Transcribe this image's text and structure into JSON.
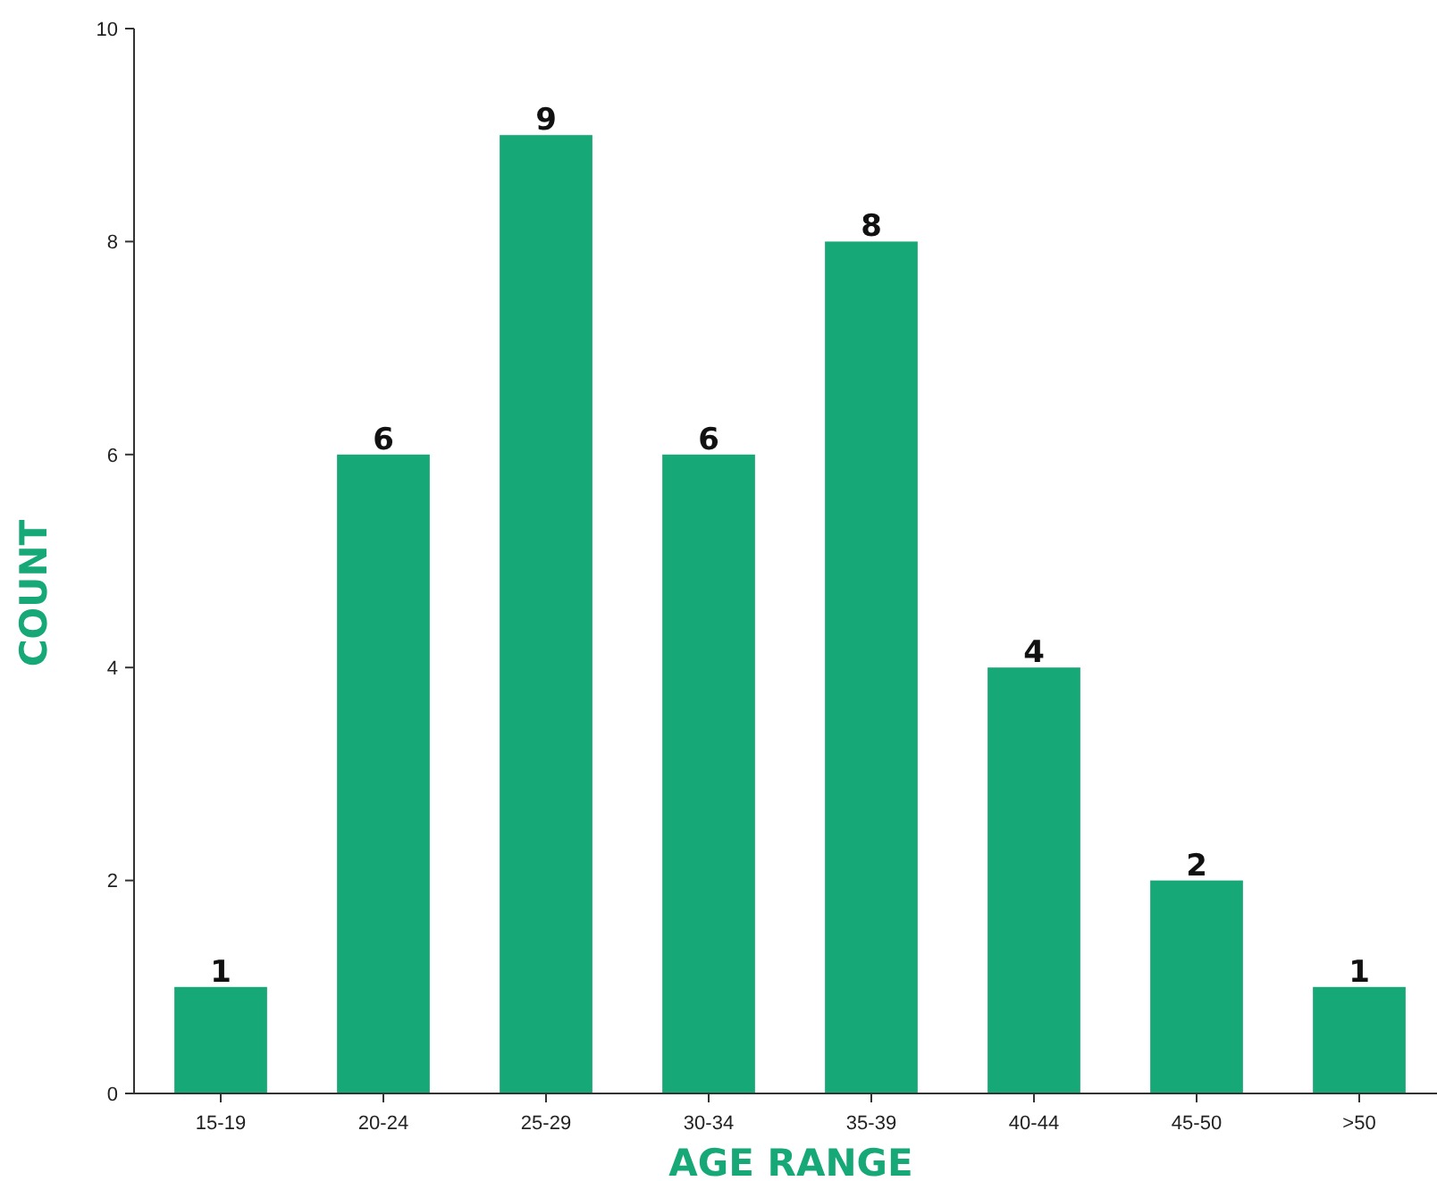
{
  "chart_data": {
    "type": "bar",
    "xlabel": "AGE RANGE",
    "ylabel": "COUNT",
    "categories": [
      "15-19",
      "20-24",
      "25-29",
      "30-34",
      "35-39",
      "40-44",
      "45-50",
      ">50"
    ],
    "values": [
      1,
      6,
      9,
      6,
      8,
      4,
      2,
      1
    ],
    "color": "#17a878",
    "ylim": [
      0,
      10
    ],
    "yticks": [
      0,
      2,
      4,
      6,
      8,
      10
    ],
    "data_labels": true,
    "grid": false
  }
}
